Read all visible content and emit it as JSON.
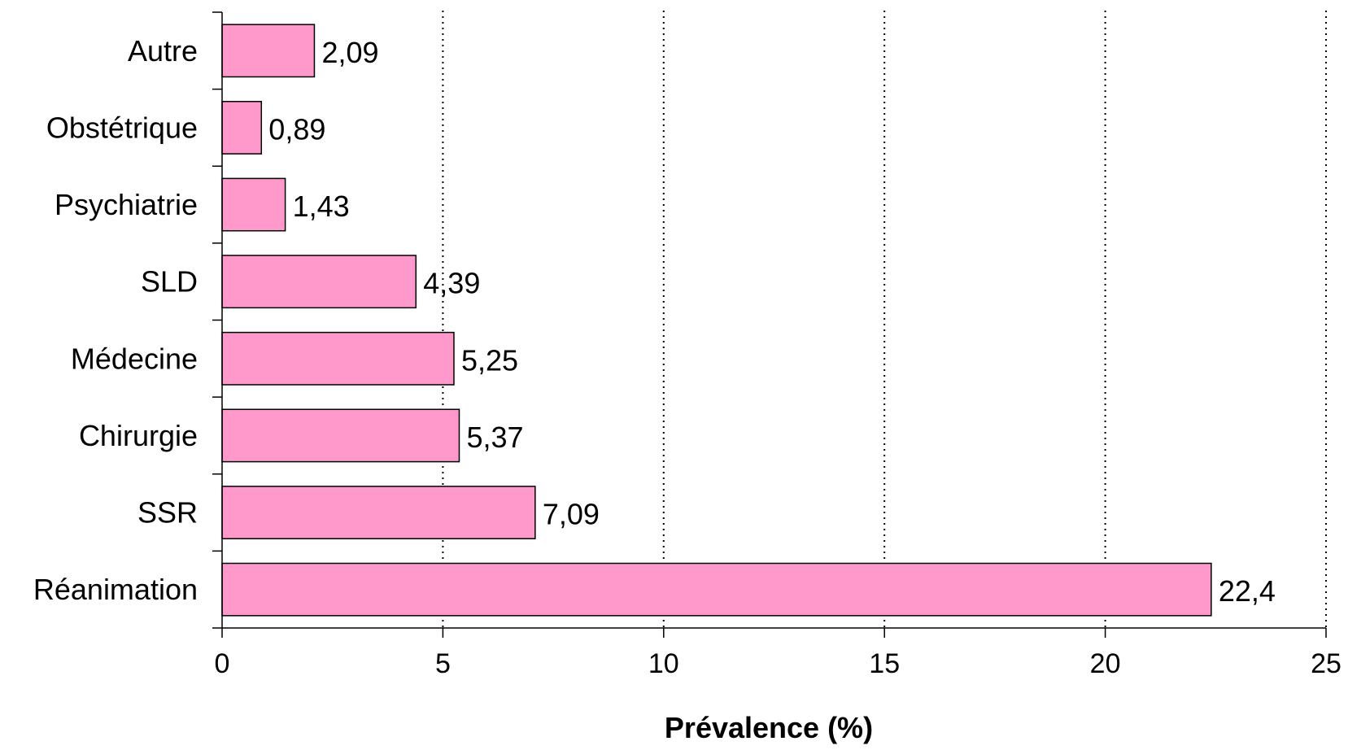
{
  "chart_data": {
    "type": "bar",
    "orientation": "horizontal",
    "categories": [
      "Autre",
      "Obstétrique",
      "Psychiatrie",
      "SLD",
      "Médecine",
      "Chirurgie",
      "SSR",
      "Réanimation"
    ],
    "values": [
      2.09,
      0.89,
      1.43,
      4.39,
      5.25,
      5.37,
      7.09,
      22.4
    ],
    "data_labels": [
      "2,09",
      "0,89",
      "1,43",
      "4,39",
      "5,25",
      "5,37",
      "7,09",
      "22,4"
    ],
    "xlabel": "Prévalence (%)",
    "xlim": [
      0,
      25
    ],
    "xticks": [
      0,
      5,
      10,
      15,
      20,
      25
    ],
    "grid": "vertical dotted",
    "legend": "none",
    "colors": {
      "bar_fill": "#ff99cc",
      "bar_stroke": "#000000"
    }
  }
}
